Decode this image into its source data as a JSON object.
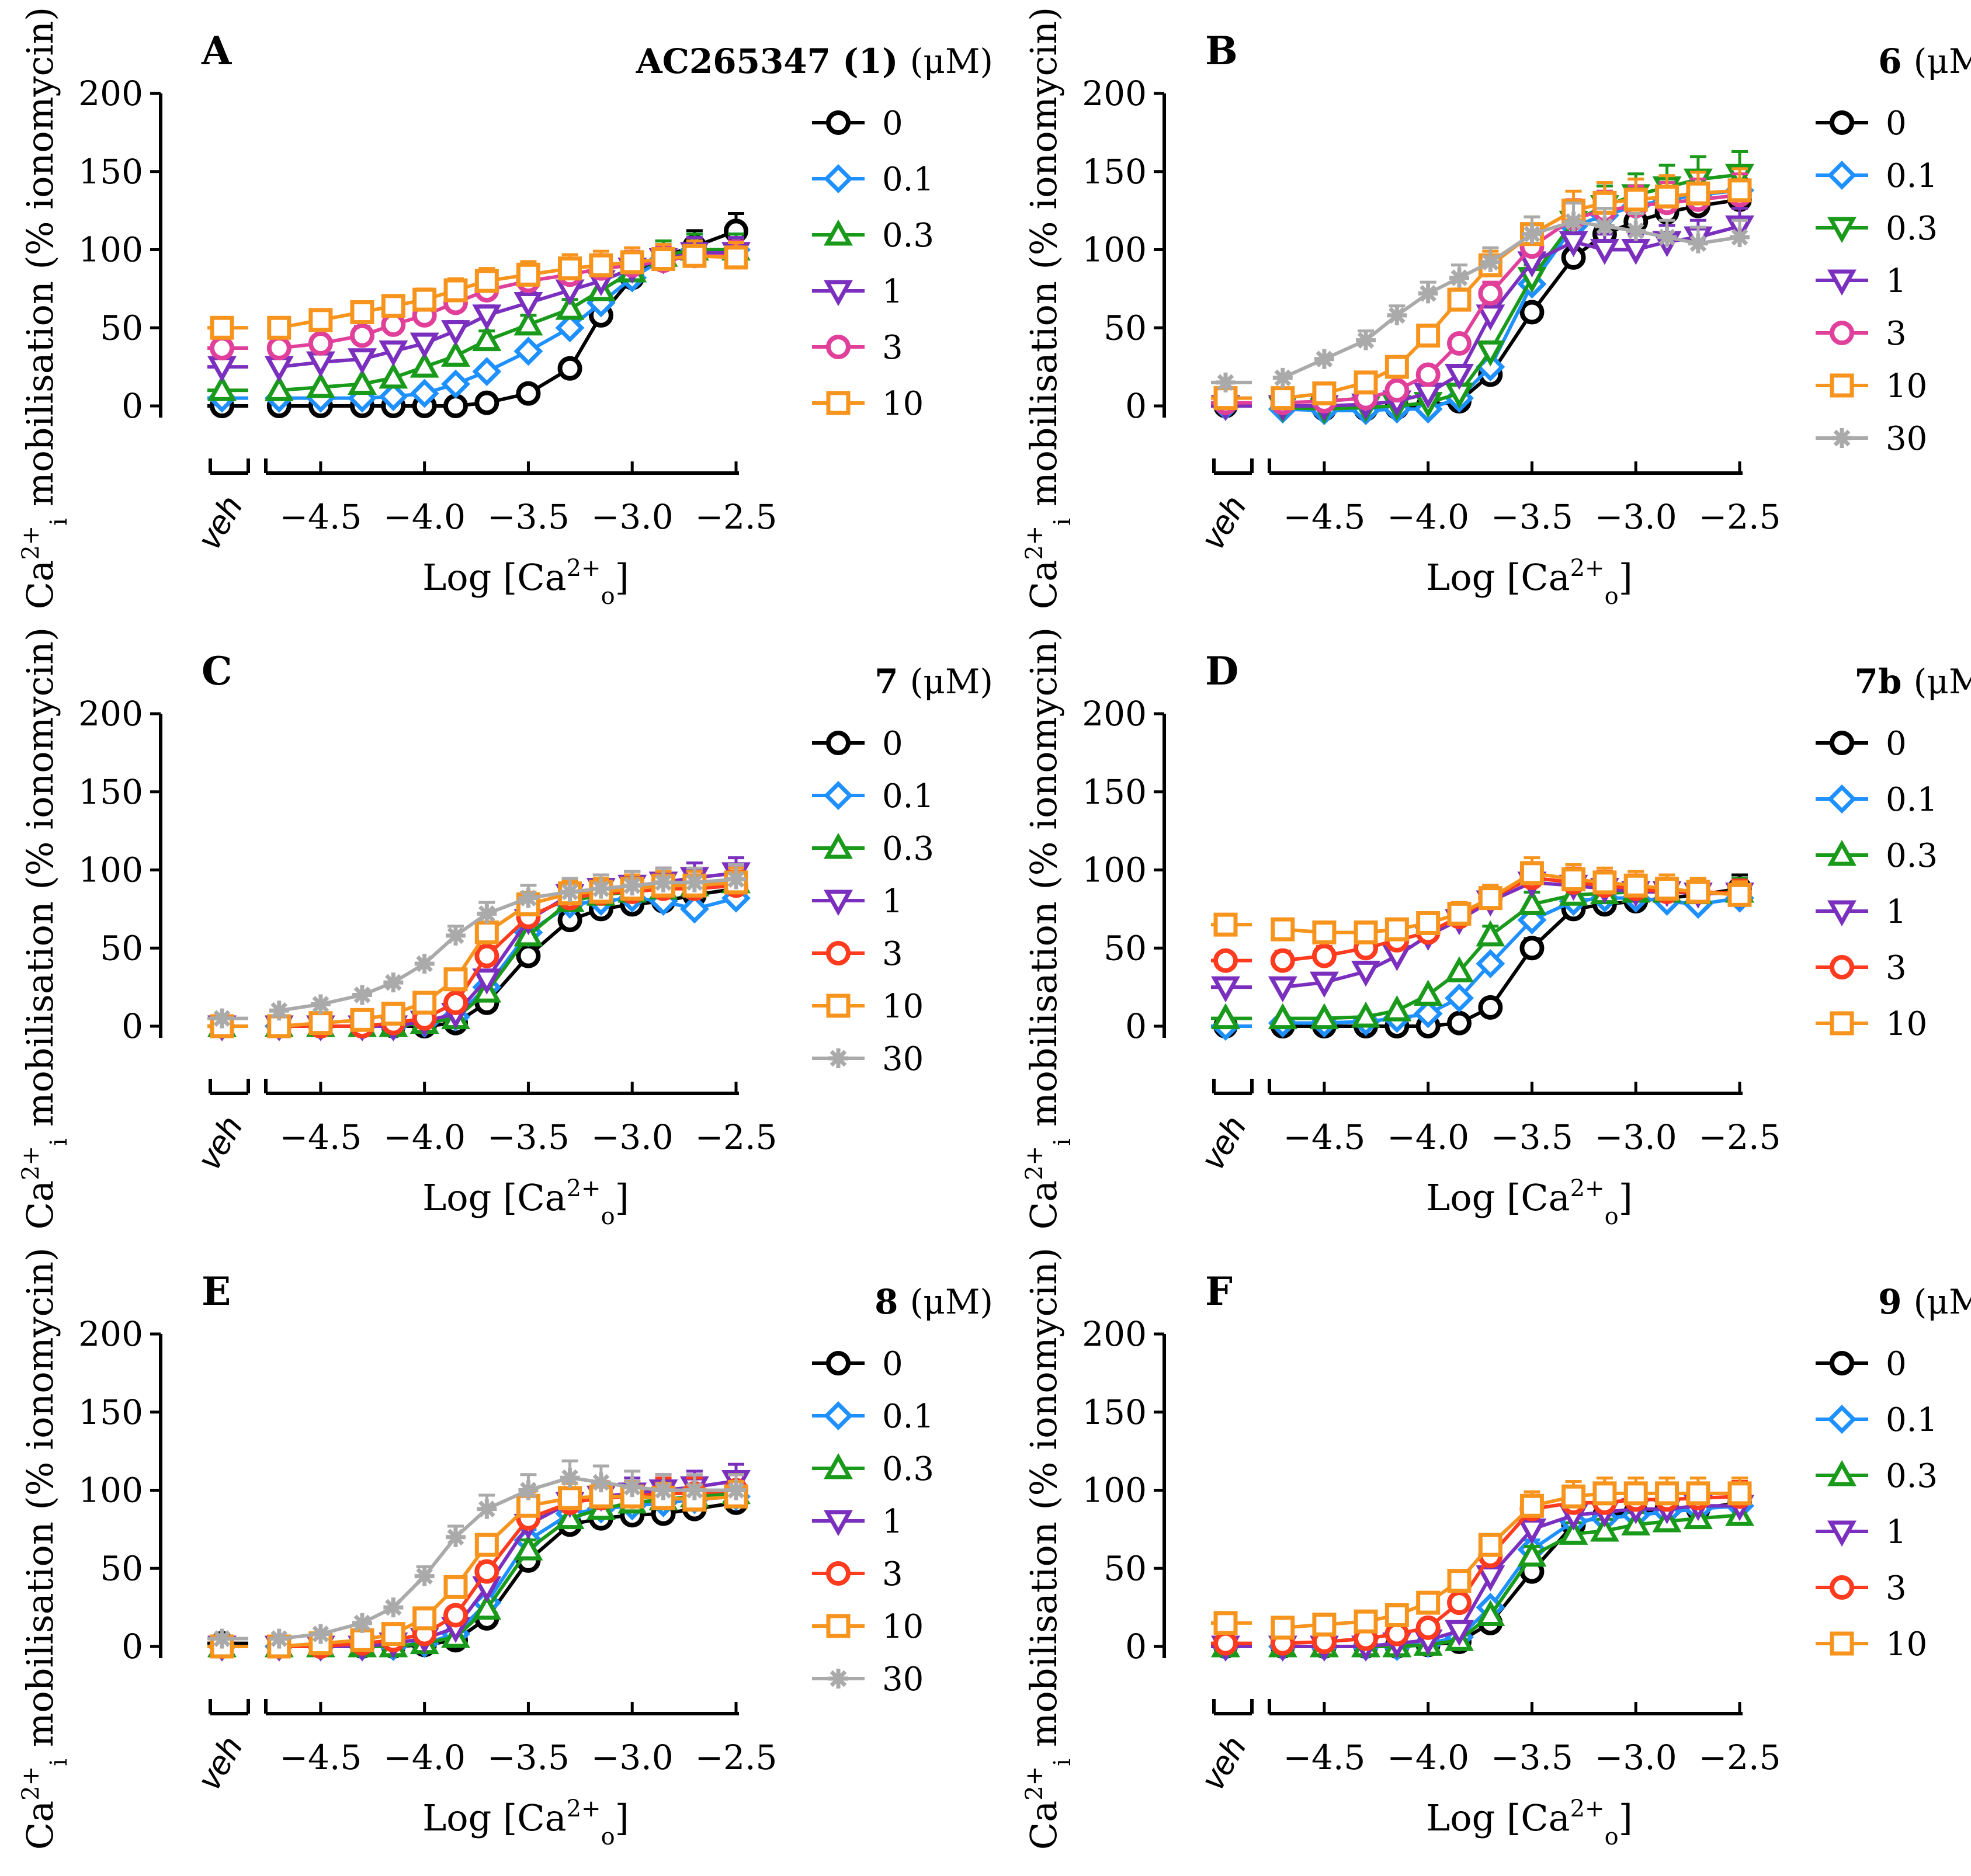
{
  "chart_data": [
    {
      "panel": "A",
      "title_compound": "AC265347 (1)",
      "title_units": "(μM)",
      "type": "line",
      "ylabel": "Ca2+i mobilisation (% ionomycin)",
      "xlabel": "Log [Ca2+o]",
      "veh_label": "veh",
      "yticks": [
        "0",
        "50",
        "100",
        "150",
        "200"
      ],
      "xticks": [
        "−4.5",
        "−4.0",
        "−3.5",
        "−3.0",
        "−2.5"
      ],
      "ylim": [
        0,
        200
      ],
      "xlim": [
        -4.75,
        -2.5
      ],
      "x": [
        -4.7,
        -4.5,
        -4.3,
        -4.15,
        -4.0,
        -3.85,
        -3.7,
        -3.5,
        -3.3,
        -3.15,
        -3.0,
        -2.85,
        -2.7,
        -2.5
      ],
      "series": [
        {
          "name": "0",
          "color": "#000000",
          "marker": "circle",
          "veh": 0,
          "values": [
            0,
            0,
            0,
            0,
            0,
            0,
            2,
            8,
            24,
            58,
            82,
            96,
            102,
            112
          ]
        },
        {
          "name": "0.1",
          "color": "#1e90ff",
          "marker": "diamond",
          "veh": 5,
          "values": [
            5,
            5,
            5,
            6,
            8,
            14,
            22,
            35,
            50,
            66,
            82,
            94,
            100,
            100
          ]
        },
        {
          "name": "0.3",
          "color": "#1a9a1a",
          "marker": "triangle-up",
          "veh": 10,
          "values": [
            10,
            12,
            14,
            18,
            25,
            32,
            42,
            52,
            62,
            74,
            86,
            96,
            100,
            100
          ]
        },
        {
          "name": "1",
          "color": "#7b2fbe",
          "marker": "triangle-down",
          "veh": 25,
          "values": [
            25,
            28,
            30,
            35,
            40,
            48,
            58,
            66,
            74,
            80,
            88,
            94,
            98,
            98
          ]
        },
        {
          "name": "3",
          "color": "#e0409a",
          "marker": "circle",
          "veh": 37,
          "values": [
            37,
            40,
            45,
            52,
            58,
            66,
            74,
            80,
            84,
            88,
            90,
            93,
            96,
            96
          ]
        },
        {
          "name": "10",
          "color": "#f7941d",
          "marker": "square",
          "veh": 50,
          "values": [
            50,
            55,
            60,
            64,
            68,
            74,
            80,
            84,
            88,
            90,
            92,
            94,
            96,
            95
          ]
        }
      ]
    },
    {
      "panel": "B",
      "title_compound": "6",
      "title_units": "(μM)",
      "type": "line",
      "ylabel": "Ca2+i mobilisation (% ionomycin)",
      "xlabel": "Log [Ca2+o]",
      "veh_label": "veh",
      "yticks": [
        "0",
        "50",
        "100",
        "150",
        "200"
      ],
      "xticks": [
        "−4.5",
        "−4.0",
        "−3.5",
        "−3.0",
        "−2.5"
      ],
      "ylim": [
        0,
        200
      ],
      "xlim": [
        -4.75,
        -2.5
      ],
      "x": [
        -4.7,
        -4.5,
        -4.3,
        -4.15,
        -4.0,
        -3.85,
        -3.7,
        -3.5,
        -3.3,
        -3.15,
        -3.0,
        -2.85,
        -2.7,
        -2.5
      ],
      "series": [
        {
          "name": "0",
          "color": "#000000",
          "marker": "circle",
          "veh": 0,
          "values": [
            0,
            -2,
            -2,
            -1,
            0,
            3,
            20,
            60,
            95,
            110,
            118,
            124,
            128,
            132
          ]
        },
        {
          "name": "0.1",
          "color": "#1e90ff",
          "marker": "diamond",
          "veh": 0,
          "values": [
            -2,
            -3,
            -3,
            -2,
            -2,
            5,
            25,
            78,
            115,
            122,
            128,
            132,
            135,
            138
          ]
        },
        {
          "name": "0.3",
          "color": "#1a9a1a",
          "marker": "triangle-down",
          "veh": 0,
          "values": [
            -1,
            -2,
            -1,
            0,
            2,
            8,
            35,
            82,
            118,
            128,
            135,
            140,
            145,
            148
          ]
        },
        {
          "name": "1",
          "color": "#7b2fbe",
          "marker": "triangle-down",
          "veh": 0,
          "values": [
            0,
            0,
            1,
            3,
            8,
            20,
            58,
            92,
            105,
            100,
            100,
            105,
            108,
            115
          ]
        },
        {
          "name": "3",
          "color": "#e0409a",
          "marker": "circle",
          "veh": 2,
          "values": [
            2,
            3,
            5,
            10,
            20,
            40,
            72,
            102,
            120,
            125,
            128,
            130,
            132,
            135
          ]
        },
        {
          "name": "10",
          "color": "#f7941d",
          "marker": "square",
          "veh": 5,
          "values": [
            5,
            8,
            15,
            25,
            45,
            68,
            90,
            110,
            125,
            130,
            132,
            134,
            136,
            138
          ]
        },
        {
          "name": "30",
          "color": "#aaaaaa",
          "marker": "star",
          "veh": 15,
          "values": [
            18,
            30,
            42,
            58,
            72,
            82,
            92,
            110,
            118,
            115,
            112,
            108,
            104,
            108
          ]
        }
      ]
    },
    {
      "panel": "C",
      "title_compound": "7",
      "title_units": "(μM)",
      "type": "line",
      "ylabel": "Ca2+i mobilisation (% ionomycin)",
      "xlabel": "Log [Ca2+o]",
      "veh_label": "veh",
      "yticks": [
        "0",
        "50",
        "100",
        "150",
        "200"
      ],
      "xticks": [
        "−4.5",
        "−4.0",
        "−3.5",
        "−3.0",
        "−2.5"
      ],
      "ylim": [
        0,
        200
      ],
      "xlim": [
        -4.75,
        -2.5
      ],
      "x": [
        -4.7,
        -4.5,
        -4.3,
        -4.15,
        -4.0,
        -3.85,
        -3.7,
        -3.5,
        -3.3,
        -3.15,
        -3.0,
        -2.85,
        -2.7,
        -2.5
      ],
      "series": [
        {
          "name": "0",
          "color": "#000000",
          "marker": "circle",
          "veh": 0,
          "values": [
            0,
            0,
            0,
            0,
            0,
            2,
            15,
            45,
            68,
            75,
            78,
            80,
            84,
            88
          ]
        },
        {
          "name": "0.1",
          "color": "#1e90ff",
          "marker": "diamond",
          "veh": 0,
          "values": [
            0,
            0,
            0,
            0,
            2,
            6,
            25,
            60,
            78,
            80,
            82,
            80,
            75,
            82
          ]
        },
        {
          "name": "0.3",
          "color": "#1a9a1a",
          "marker": "triangle-up",
          "veh": 0,
          "values": [
            0,
            0,
            0,
            0,
            2,
            5,
            22,
            58,
            80,
            84,
            86,
            88,
            90,
            92
          ]
        },
        {
          "name": "1",
          "color": "#7b2fbe",
          "marker": "triangle-down",
          "veh": 0,
          "values": [
            0,
            0,
            0,
            0,
            3,
            8,
            30,
            68,
            84,
            88,
            90,
            92,
            95,
            98
          ]
        },
        {
          "name": "3",
          "color": "#ff3b1f",
          "marker": "circle",
          "veh": 0,
          "values": [
            0,
            0,
            0,
            2,
            5,
            15,
            45,
            70,
            82,
            85,
            86,
            88,
            88,
            90
          ]
        },
        {
          "name": "10",
          "color": "#f7941d",
          "marker": "square",
          "veh": 0,
          "values": [
            0,
            2,
            4,
            8,
            15,
            30,
            60,
            78,
            85,
            86,
            88,
            90,
            90,
            92
          ]
        },
        {
          "name": "30",
          "color": "#aaaaaa",
          "marker": "star",
          "veh": 5,
          "values": [
            10,
            14,
            20,
            28,
            40,
            58,
            72,
            82,
            86,
            88,
            90,
            92,
            92,
            94
          ]
        }
      ]
    },
    {
      "panel": "D",
      "title_compound": "7b",
      "title_units": "(μM)",
      "type": "line",
      "ylabel": "Ca2+i mobilisation (% ionomycin)",
      "xlabel": "Log [Ca2+o]",
      "veh_label": "veh",
      "yticks": [
        "0",
        "50",
        "100",
        "150",
        "200"
      ],
      "xticks": [
        "−4.5",
        "−4.0",
        "−3.5",
        "−3.0",
        "−2.5"
      ],
      "ylim": [
        0,
        200
      ],
      "xlim": [
        -4.75,
        -2.5
      ],
      "x": [
        -4.7,
        -4.5,
        -4.3,
        -4.15,
        -4.0,
        -3.85,
        -3.7,
        -3.5,
        -3.3,
        -3.15,
        -3.0,
        -2.85,
        -2.7,
        -2.5
      ],
      "series": [
        {
          "name": "0",
          "color": "#000000",
          "marker": "circle",
          "veh": 0,
          "values": [
            0,
            0,
            0,
            0,
            0,
            2,
            12,
            50,
            75,
            78,
            80,
            82,
            84,
            88
          ]
        },
        {
          "name": "0.1",
          "color": "#1e90ff",
          "marker": "diamond",
          "veh": 0,
          "values": [
            2,
            2,
            3,
            5,
            8,
            18,
            40,
            68,
            80,
            82,
            82,
            80,
            78,
            82
          ]
        },
        {
          "name": "0.3",
          "color": "#1a9a1a",
          "marker": "triangle-up",
          "veh": 5,
          "values": [
            5,
            5,
            6,
            10,
            20,
            35,
            58,
            78,
            84,
            85,
            86,
            86,
            85,
            86
          ]
        },
        {
          "name": "1",
          "color": "#7b2fbe",
          "marker": "triangle-down",
          "veh": 25,
          "values": [
            25,
            28,
            35,
            45,
            58,
            68,
            80,
            92,
            90,
            88,
            86,
            86,
            85,
            85
          ]
        },
        {
          "name": "3",
          "color": "#ff3b1f",
          "marker": "circle",
          "veh": 42,
          "values": [
            42,
            45,
            50,
            55,
            60,
            70,
            82,
            95,
            92,
            90,
            88,
            86,
            86,
            85
          ]
        },
        {
          "name": "10",
          "color": "#f7941d",
          "marker": "square",
          "veh": 65,
          "values": [
            62,
            60,
            60,
            62,
            66,
            72,
            82,
            98,
            94,
            92,
            90,
            88,
            86,
            84
          ]
        }
      ]
    },
    {
      "panel": "E",
      "title_compound": "8",
      "title_units": "(μM)",
      "type": "line",
      "ylabel": "Ca2+i mobilisation (% ionomycin)",
      "xlabel": "Log [Ca2+o]",
      "veh_label": "veh",
      "yticks": [
        "0",
        "50",
        "100",
        "150",
        "200"
      ],
      "xticks": [
        "−4.5",
        "−4.0",
        "−3.5",
        "−3.0",
        "−2.5"
      ],
      "ylim": [
        0,
        200
      ],
      "xlim": [
        -4.75,
        -2.5
      ],
      "x": [
        -4.7,
        -4.5,
        -4.3,
        -4.15,
        -4.0,
        -3.85,
        -3.7,
        -3.5,
        -3.3,
        -3.15,
        -3.0,
        -2.85,
        -2.7,
        -2.5
      ],
      "series": [
        {
          "name": "0",
          "color": "#000000",
          "marker": "circle",
          "veh": 2,
          "values": [
            0,
            0,
            0,
            0,
            1,
            4,
            18,
            55,
            78,
            82,
            84,
            85,
            88,
            92
          ]
        },
        {
          "name": "0.1",
          "color": "#1e90ff",
          "marker": "diamond",
          "veh": 0,
          "values": [
            0,
            0,
            0,
            0,
            2,
            8,
            28,
            68,
            85,
            88,
            90,
            92,
            94,
            96
          ]
        },
        {
          "name": "0.3",
          "color": "#1a9a1a",
          "marker": "triangle-up",
          "veh": 0,
          "values": [
            0,
            0,
            0,
            0,
            2,
            6,
            24,
            62,
            82,
            88,
            92,
            94,
            96,
            98
          ]
        },
        {
          "name": "1",
          "color": "#7b2fbe",
          "marker": "triangle-down",
          "veh": 0,
          "values": [
            0,
            0,
            0,
            2,
            5,
            12,
            38,
            78,
            92,
            96,
            98,
            100,
            102,
            106
          ]
        },
        {
          "name": "3",
          "color": "#ff3b1f",
          "marker": "circle",
          "veh": 0,
          "values": [
            0,
            0,
            2,
            4,
            8,
            20,
            48,
            82,
            92,
            95,
            96,
            98,
            98,
            100
          ]
        },
        {
          "name": "10",
          "color": "#f7941d",
          "marker": "square",
          "veh": 0,
          "values": [
            0,
            2,
            4,
            8,
            18,
            38,
            65,
            90,
            95,
            96,
            96,
            95,
            94,
            96
          ]
        },
        {
          "name": "30",
          "color": "#aaaaaa",
          "marker": "star",
          "veh": 5,
          "values": [
            5,
            8,
            15,
            25,
            45,
            70,
            88,
            100,
            108,
            105,
            102,
            100,
            100,
            100
          ]
        }
      ]
    },
    {
      "panel": "F",
      "title_compound": "9",
      "title_units": "(μM)",
      "type": "line",
      "ylabel": "Ca2+i mobilisation (% ionomycin)",
      "xlabel": "Log [Ca2+o]",
      "veh_label": "veh",
      "yticks": [
        "0",
        "50",
        "100",
        "150",
        "200"
      ],
      "xticks": [
        "−4.5",
        "−4.0",
        "−3.5",
        "−3.0",
        "−2.5"
      ],
      "ylim": [
        0,
        200
      ],
      "xlim": [
        -4.75,
        -2.5
      ],
      "x": [
        -4.7,
        -4.5,
        -4.3,
        -4.15,
        -4.0,
        -3.85,
        -3.7,
        -3.5,
        -3.3,
        -3.15,
        -3.0,
        -2.85,
        -2.7,
        -2.5
      ],
      "series": [
        {
          "name": "0",
          "color": "#000000",
          "marker": "circle",
          "veh": 0,
          "values": [
            0,
            0,
            0,
            0,
            1,
            3,
            15,
            48,
            78,
            84,
            86,
            88,
            88,
            92
          ]
        },
        {
          "name": "0.1",
          "color": "#1e90ff",
          "marker": "diamond",
          "veh": 0,
          "values": [
            0,
            0,
            0,
            0,
            2,
            6,
            25,
            62,
            80,
            82,
            84,
            86,
            88,
            90
          ]
        },
        {
          "name": "0.3",
          "color": "#1a9a1a",
          "marker": "triangle-up",
          "veh": 0,
          "values": [
            0,
            0,
            0,
            0,
            1,
            4,
            20,
            58,
            72,
            74,
            78,
            80,
            82,
            84
          ]
        },
        {
          "name": "1",
          "color": "#7b2fbe",
          "marker": "triangle-down",
          "veh": 0,
          "values": [
            0,
            0,
            0,
            2,
            4,
            10,
            45,
            75,
            84,
            86,
            88,
            88,
            90,
            90
          ]
        },
        {
          "name": "3",
          "color": "#ff3b1f",
          "marker": "circle",
          "veh": 2,
          "values": [
            2,
            3,
            5,
            8,
            12,
            28,
            58,
            88,
            92,
            92,
            94,
            94,
            95,
            96
          ]
        },
        {
          "name": "10",
          "color": "#f7941d",
          "marker": "square",
          "veh": 15,
          "values": [
            12,
            14,
            16,
            20,
            28,
            42,
            65,
            90,
            96,
            98,
            98,
            98,
            98,
            98
          ]
        }
      ]
    }
  ]
}
